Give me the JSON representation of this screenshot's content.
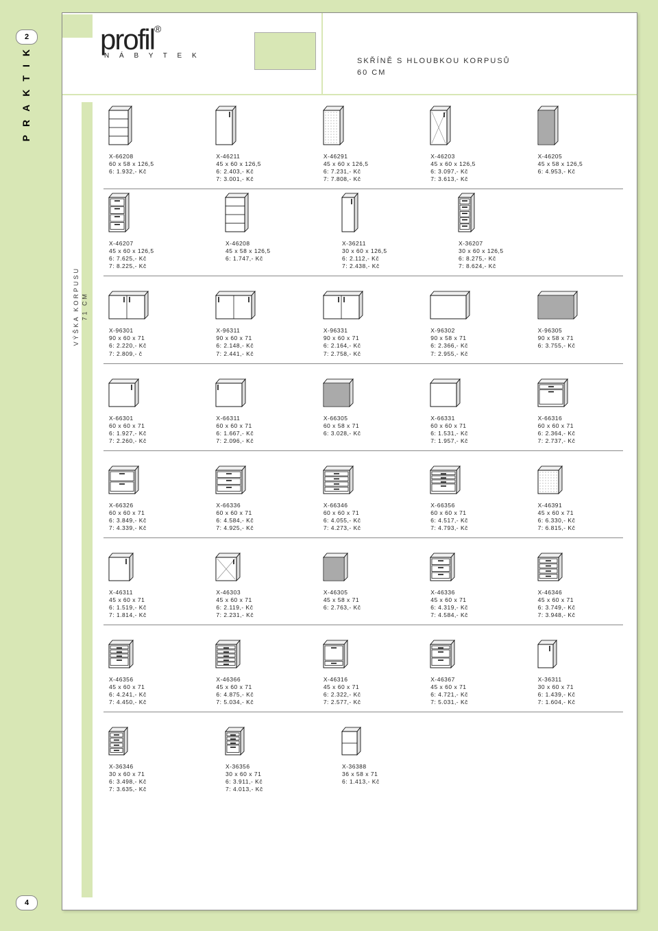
{
  "side": "PRAKTIK",
  "page_top": "2",
  "page_bottom": "4",
  "logo": {
    "brand": "profil",
    "reg": "®",
    "sub": "N Á B Y T E K"
  },
  "title_line1": "SKŘÍNĚ S HLOUBKOU KORPUSŮ",
  "title_line2": "60 CM",
  "side2_line1": "VÝŠKA KORPUSU",
  "side2_line2": "71 CM",
  "rows": [
    [
      {
        "code": "X-66208",
        "dim": "60 x 58 x 126,5",
        "p6": "6: 1.932,- Kč",
        "p7": "",
        "shape": "tall-open"
      },
      {
        "code": "X-46211",
        "dim": "45 x 60 x 126,5",
        "p6": "6: 2.403,- Kč",
        "p7": "7: 3.001,- Kč",
        "shape": "tall-door"
      },
      {
        "code": "X-46291",
        "dim": "45 x 60 x 126,5",
        "p6": "6: 7.231,- Kč",
        "p7": "7: 7.808,- Kč",
        "shape": "tall-dotted"
      },
      {
        "code": "X-46203",
        "dim": "45 x 60 x 126,5",
        "p6": "6: 3.097,- Kč",
        "p7": "7: 3.613,- Kč",
        "shape": "tall-glass"
      },
      {
        "code": "X-46205",
        "dim": "45 x 58 x 126,5",
        "p6": "6: 4.953,- Kč",
        "p7": "",
        "shape": "tall-roller"
      }
    ],
    [
      {
        "code": "X-46207",
        "dim": "45 x 60 x 126,5",
        "p6": "6: 7.625,- Kč",
        "p7": "7: 8.225,- Kč",
        "shape": "tall-drawers4"
      },
      {
        "code": "X-46208",
        "dim": "45 x 58 x 126,5",
        "p6": "6: 1.747,- Kč",
        "p7": "",
        "shape": "tall-open"
      },
      {
        "code": "X-36211",
        "dim": "30 x 60 x 126,5",
        "p6": "6: 2.112,- Kč",
        "p7": "7: 2.438,- Kč",
        "shape": "tall-door-n"
      },
      {
        "code": "X-36207",
        "dim": "30 x 60 x 126,5",
        "p6": "6: 8.275,- Kč",
        "p7": "7: 8.624,- Kč",
        "shape": "tall-drawers5-n"
      }
    ],
    [
      {
        "code": "X-96301",
        "dim": "90 x 60 x 71",
        "p6": "6: 2.220,- Kč",
        "p7": "7: 2.809,- č",
        "shape": "wide-2door"
      },
      {
        "code": "X-96311",
        "dim": "90 x 60 x 71",
        "p6": "6: 2.148,- Kč",
        "p7": "7: 2.441,- Kč",
        "shape": "wide-slide"
      },
      {
        "code": "X-96331",
        "dim": "90 x 60 x 71",
        "p6": "6: 2.164,- Kč",
        "p7": "7: 2.758,- Kč",
        "shape": "wide-2door"
      },
      {
        "code": "X-96302",
        "dim": "90 x 58 x 71",
        "p6": "6: 2.366,- Kč",
        "p7": "7: 2.955,- Kč",
        "shape": "wide-box"
      },
      {
        "code": "X-96305",
        "dim": "90 x 58 x 71",
        "p6": "6: 3.755,- Kč",
        "p7": "",
        "shape": "wide-roller"
      }
    ],
    [
      {
        "code": "X-66301",
        "dim": "60 x 60 x 71",
        "p6": "6: 1.927,- Kč",
        "p7": "7: 2.260,- Kč",
        "shape": "med-door"
      },
      {
        "code": "X-66311",
        "dim": "60 x 60 x 71",
        "p6": "6: 1.667,- Kč",
        "p7": "7: 2.096,- Kč",
        "shape": "med-slide"
      },
      {
        "code": "X-66305",
        "dim": "60 x 58 x 71",
        "p6": "6: 3.028,- Kč",
        "p7": "",
        "shape": "med-roller"
      },
      {
        "code": "X-66331",
        "dim": "60 x 60 x 71",
        "p6": "6: 1.531,- Kč",
        "p7": "7: 1.957,- Kč",
        "shape": "med-box"
      },
      {
        "code": "X-66316",
        "dim": "60 x 60 x 71",
        "p6": "6: 2.364,- Kč",
        "p7": "7: 2.737,- Kč",
        "shape": "med-drawer1"
      }
    ],
    [
      {
        "code": "X-66326",
        "dim": "60 x 60 x 71",
        "p6": "6: 3.849,- Kč",
        "p7": "7: 4.339,- Kč",
        "shape": "med-drawers2"
      },
      {
        "code": "X-66336",
        "dim": "60 x 60 x 71",
        "p6": "6: 4.584,- Kč",
        "p7": "7: 4.925,- Kč",
        "shape": "med-drawers3"
      },
      {
        "code": "X-66346",
        "dim": "60 x 60 x 71",
        "p6": "6: 4.055,- Kč",
        "p7": "7: 4.273,- Kč",
        "shape": "med-drawers4s"
      },
      {
        "code": "X-66356",
        "dim": "60 x 60 x 71",
        "p6": "6: 4.517,- Kč",
        "p7": "7: 4.793,- Kč",
        "shape": "med-combo"
      },
      {
        "code": "X-46391",
        "dim": "45 x 60 x 71",
        "p6": "6: 6.330,- Kč",
        "p7": "7: 6.815,- Kč",
        "shape": "nar-dotted"
      }
    ],
    [
      {
        "code": "X-46311",
        "dim": "45 x 60 x 71",
        "p6": "6: 1.519,- Kč",
        "p7": "7: 1.814,- Kč",
        "shape": "nar-door"
      },
      {
        "code": "X-46303",
        "dim": "45 x 60 x 71",
        "p6": "6: 2.119,- Kč",
        "p7": "7: 2.231,- Kč",
        "shape": "nar-glass"
      },
      {
        "code": "X-46305",
        "dim": "45 x 58 x 71",
        "p6": "6: 2.763,- Kč",
        "p7": "",
        "shape": "nar-roller"
      },
      {
        "code": "X-46336",
        "dim": "45 x 60 x 71",
        "p6": "6: 4.319,- Kč",
        "p7": "7: 4.584,- Kč",
        "shape": "nar-drawers3"
      },
      {
        "code": "X-46346",
        "dim": "45 x 60 x 71",
        "p6": "6: 3.749,- Kč",
        "p7": "7: 3.948,- Kč",
        "shape": "nar-drawers4s"
      }
    ],
    [
      {
        "code": "X-46356",
        "dim": "45 x 60 x 71",
        "p6": "6: 4.241,- Kč",
        "p7": "7: 4.450,- Kč",
        "shape": "nar-combo"
      },
      {
        "code": "X-46366",
        "dim": "45 x 60 x 71",
        "p6": "6: 4.875,- Kč",
        "p7": "7: 5.034,- Kč",
        "shape": "nar-drawers5"
      },
      {
        "code": "X-46316",
        "dim": "45 x 60 x 71",
        "p6": "6: 2.322,- Kč",
        "p7": "7: 2.577,- Kč",
        "shape": "nar-drawer1b"
      },
      {
        "code": "X-46367",
        "dim": "45 x 60 x 71",
        "p6": "6: 4.721,- Kč",
        "p7": "7: 5.031,- Kč",
        "shape": "nar-3deep"
      },
      {
        "code": "X-36311",
        "dim": "30 x 60 x 71",
        "p6": "6: 1.439,- Kč",
        "p7": "7: 1.604,- Kč",
        "shape": "vn-door"
      }
    ],
    [
      {
        "code": "X-36346",
        "dim": "30 x 60 x 71",
        "p6": "6: 3.498,- Kč",
        "p7": "7: 3.635,- Kč",
        "shape": "vn-drawers4"
      },
      {
        "code": "X-36356",
        "dim": "30 x 60 x 71",
        "p6": "6: 3.911,- Kč",
        "p7": "7: 4.013,- Kč",
        "shape": "vn-combo"
      },
      {
        "code": "X-36388",
        "dim": "36 x 58 x 71",
        "p6": "6: 1.413,- Kč",
        "p7": "",
        "shape": "vn-open"
      }
    ]
  ]
}
